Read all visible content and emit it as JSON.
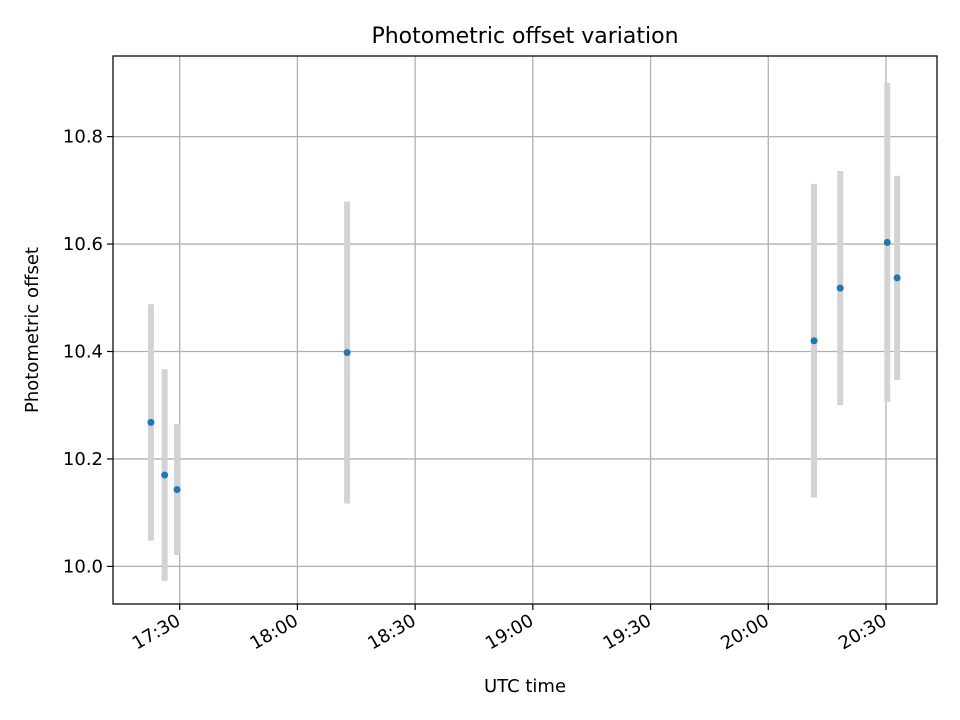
{
  "chart_data": {
    "type": "scatter",
    "title": "Photometric offset variation",
    "xlabel": "UTC time",
    "ylabel": "Photometric offset",
    "x_ticks": [
      "17:30",
      "18:00",
      "18:30",
      "19:00",
      "19:30",
      "20:00",
      "20:30"
    ],
    "y_ticks": [
      "10.0",
      "10.2",
      "10.4",
      "10.6",
      "10.8"
    ],
    "xlim": [
      "17:13",
      "20:43"
    ],
    "ylim": [
      9.93,
      10.95
    ],
    "grid": true,
    "colors": {
      "marker": "#1f77b4",
      "errorbar": "#d3d3d3",
      "grid": "#b0b0b0"
    },
    "series": [
      {
        "points": [
          {
            "x": "17:22:40",
            "y": 10.268,
            "err": 0.22
          },
          {
            "x": "17:26:10",
            "y": 10.17,
            "err": 0.197
          },
          {
            "x": "17:29:20",
            "y": 10.143,
            "err": 0.122
          },
          {
            "x": "18:12:40",
            "y": 10.398,
            "err": 0.281
          },
          {
            "x": "20:11:40",
            "y": 10.42,
            "err": 0.292
          },
          {
            "x": "20:18:20",
            "y": 10.518,
            "err": 0.218
          },
          {
            "x": "20:30:20",
            "y": 10.603,
            "err": 0.297
          },
          {
            "x": "20:32:50",
            "y": 10.537,
            "err": 0.19
          }
        ]
      }
    ]
  }
}
